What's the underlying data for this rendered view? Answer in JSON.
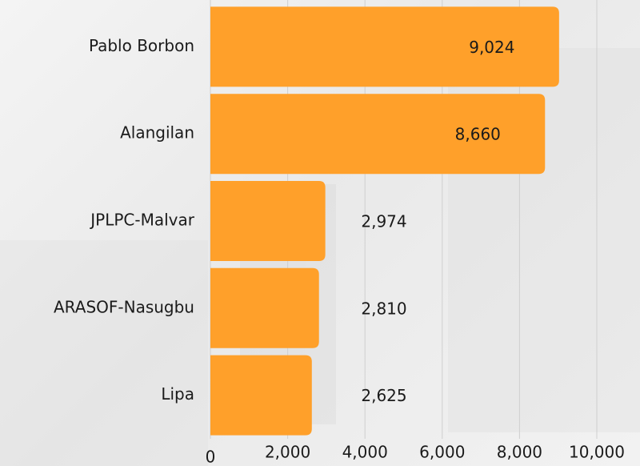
{
  "chart_data": {
    "type": "bar",
    "orientation": "horizontal",
    "categories": [
      "Pablo Borbon",
      "Alangilan",
      "JPLPC-Malvar",
      "ARASOF-Nasugbu",
      "Lipa"
    ],
    "values": [
      9024,
      8660,
      2974,
      2810,
      2625
    ],
    "value_labels": [
      "9,024",
      "8,660",
      "2,974",
      "2,810",
      "2,625"
    ],
    "color": "#ffa02a",
    "xlim": [
      0,
      10000
    ],
    "xticks": [
      0,
      {
        "value": 2000,
        "label": "2,000"
      },
      {
        "value": 4000,
        "label": "4,000"
      },
      {
        "value": 6000,
        "label": "6,000"
      },
      {
        "value": 8000,
        "label": "8,000"
      },
      {
        "value": 10000,
        "label": "10,000"
      }
    ],
    "grid": true
  }
}
